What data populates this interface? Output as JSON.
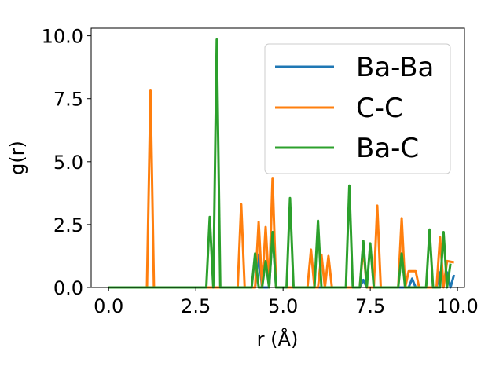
{
  "chart_data": {
    "type": "line",
    "xlabel": "r (Å)",
    "ylabel": "g(r)",
    "xlim": [
      -0.5,
      10.2
    ],
    "ylim": [
      0,
      10.3
    ],
    "xticks": [
      0.0,
      2.5,
      5.0,
      7.5,
      10.0
    ],
    "xtick_labels": [
      "0.0",
      "2.5",
      "5.0",
      "7.5",
      "10.0"
    ],
    "yticks": [
      0.0,
      2.5,
      5.0,
      7.5,
      10.0
    ],
    "ytick_labels": [
      "0.0",
      "2.5",
      "5.0",
      "7.5",
      "10.0"
    ],
    "grid": false,
    "legend_position": "top-right",
    "series": [
      {
        "name": "Ba-Ba",
        "color": "#1f77b4",
        "x": [
          0.0,
          4.2,
          4.3,
          4.4,
          4.6,
          4.7,
          4.8,
          7.2,
          7.3,
          7.4,
          8.6,
          8.7,
          8.8,
          9.4,
          9.5,
          9.6,
          9.7,
          9.8,
          9.9
        ],
        "y": [
          0.0,
          0.0,
          1.3,
          0.0,
          0.0,
          2.2,
          0.0,
          0.0,
          0.3,
          0.0,
          0.0,
          0.35,
          0.0,
          0.0,
          0.6,
          0.3,
          0.6,
          0.0,
          0.5
        ]
      },
      {
        "name": "C-C",
        "color": "#ff7f0e",
        "x": [
          0.0,
          1.1,
          1.2,
          1.3,
          3.7,
          3.8,
          3.9,
          4.2,
          4.3,
          4.4,
          4.5,
          4.6,
          4.7,
          4.8,
          5.7,
          5.8,
          5.9,
          6.0,
          6.1,
          6.2,
          6.3,
          6.4,
          7.2,
          7.3,
          7.4,
          7.6,
          7.7,
          7.8,
          8.3,
          8.4,
          8.5,
          8.6,
          8.8,
          8.9,
          9.4,
          9.5,
          9.6,
          9.7,
          9.9
        ],
        "y": [
          0.0,
          0.0,
          7.85,
          0.0,
          0.0,
          3.3,
          0.0,
          0.0,
          2.6,
          0.0,
          2.4,
          0.0,
          4.35,
          0.0,
          0.0,
          1.5,
          0.0,
          0.0,
          1.3,
          0.0,
          1.25,
          0.0,
          0.0,
          1.6,
          0.0,
          0.0,
          3.25,
          0.0,
          0.0,
          2.75,
          0.0,
          0.65,
          0.65,
          0.0,
          0.0,
          2.0,
          0.0,
          1.05,
          1.0
        ]
      },
      {
        "name": "Ba-C",
        "color": "#2ca02c",
        "x": [
          0.0,
          2.8,
          2.9,
          3.0,
          3.1,
          3.2,
          4.1,
          4.2,
          4.3,
          4.4,
          4.5,
          4.6,
          4.7,
          4.8,
          5.1,
          5.2,
          5.3,
          5.9,
          6.0,
          6.1,
          6.8,
          6.9,
          7.0,
          7.2,
          7.3,
          7.4,
          7.5,
          7.6,
          8.3,
          8.4,
          8.5,
          9.1,
          9.2,
          9.3,
          9.5,
          9.6,
          9.7,
          9.8
        ],
        "y": [
          0.0,
          0.0,
          2.8,
          0.0,
          9.85,
          0.0,
          0.0,
          1.35,
          0.0,
          0.0,
          1.05,
          0.0,
          2.2,
          0.0,
          0.0,
          3.55,
          0.0,
          0.0,
          2.65,
          0.0,
          0.0,
          4.05,
          0.0,
          0.0,
          1.85,
          0.0,
          1.75,
          0.0,
          0.0,
          1.35,
          0.0,
          0.0,
          2.3,
          0.0,
          0.0,
          2.2,
          0.0,
          0.95
        ]
      }
    ]
  }
}
